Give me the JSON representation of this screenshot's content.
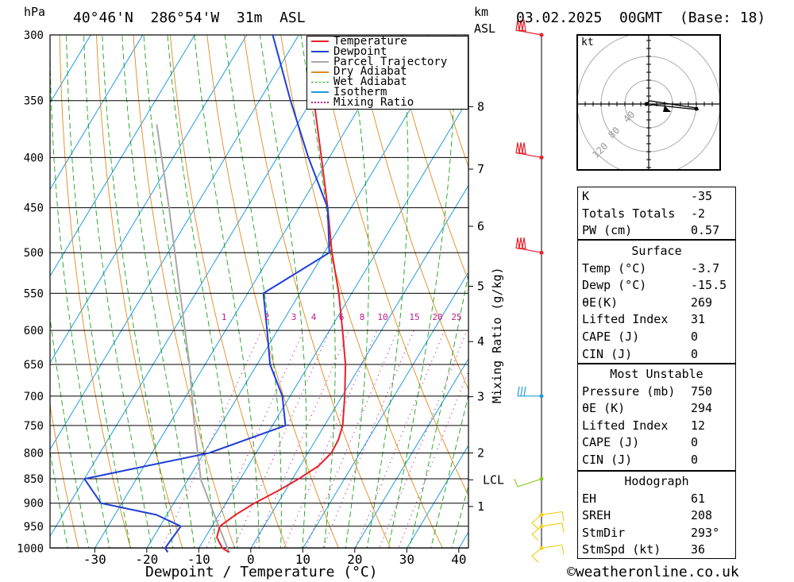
{
  "header": {
    "location": "40°46'N  286°54'W  31m  ASL",
    "datetime": "03.02.2025  00GMT  (Base: 18)",
    "pressure_unit": "hPa",
    "height_unit": "km",
    "height_unit2": "ASL"
  },
  "colors": {
    "temperature": "#e8202a",
    "dewpoint": "#1f3fd6",
    "parcel": "#a8a8a8",
    "dry_adiabat": "#e08a1e",
    "wet_adiabat": "#1aa31a",
    "isotherm": "#1f9be0",
    "mixing_ratio": "#c0198a",
    "wind_red": "#e8202a",
    "wind_blue": "#1f9be0",
    "wind_green": "#8ac82a",
    "wind_yellow": "#f0d020"
  },
  "legend": [
    "Temperature",
    "Dewpoint",
    "Parcel Trajectory",
    "Dry Adiabat",
    "Wet Adiabat",
    "Isotherm",
    "Mixing Ratio"
  ],
  "mixing_ratio_label": "Mixing Ratio (g/kg)",
  "xlabel": "Dewpoint / Temperature (°C)",
  "watermark": "©weatheronline.co.uk",
  "chart_data": {
    "type": "skew-t",
    "pressure_levels": [
      300,
      350,
      400,
      450,
      500,
      550,
      600,
      650,
      700,
      750,
      800,
      850,
      900,
      950,
      1000
    ],
    "temperature_ticks": [
      -30,
      -20,
      -10,
      0,
      10,
      20,
      30,
      40
    ],
    "height_ticks_km": [
      {
        "label": "8",
        "p": 355
      },
      {
        "label": "7",
        "p": 411
      },
      {
        "label": "6",
        "p": 470
      },
      {
        "label": "5",
        "p": 541
      },
      {
        "label": "4",
        "p": 616
      },
      {
        "label": "3",
        "p": 701
      },
      {
        "label": "2",
        "p": 800
      },
      {
        "label": "LCL",
        "p": 852
      },
      {
        "label": "1",
        "p": 907
      }
    ],
    "mixing_ratio_values": [
      "1",
      "2",
      "3",
      "4",
      "6",
      "8",
      "10",
      "15",
      "20",
      "25"
    ],
    "temperature_profile": [
      {
        "p": 1010,
        "t": -3.7
      },
      {
        "p": 1000,
        "t": -5.5
      },
      {
        "p": 975,
        "t": -7.8
      },
      {
        "p": 950,
        "t": -8.5
      },
      {
        "p": 925,
        "t": -6.8
      },
      {
        "p": 900,
        "t": -4.5
      },
      {
        "p": 875,
        "t": -1.5
      },
      {
        "p": 850,
        "t": 1.2
      },
      {
        "p": 825,
        "t": 3.5
      },
      {
        "p": 800,
        "t": 4.5
      },
      {
        "p": 775,
        "t": 4.3
      },
      {
        "p": 750,
        "t": 3.5
      },
      {
        "p": 700,
        "t": 0.5
      },
      {
        "p": 650,
        "t": -3.0
      },
      {
        "p": 600,
        "t": -7.5
      },
      {
        "p": 550,
        "t": -12.5
      },
      {
        "p": 500,
        "t": -18.5
      },
      {
        "p": 450,
        "t": -24.5
      },
      {
        "p": 400,
        "t": -31.5
      },
      {
        "p": 350,
        "t": -39.5
      },
      {
        "p": 300,
        "t": -48
      }
    ],
    "dewpoint_profile": [
      {
        "p": 1010,
        "t": -15.5
      },
      {
        "p": 1000,
        "t": -16.5
      },
      {
        "p": 950,
        "t": -16
      },
      {
        "p": 925,
        "t": -22
      },
      {
        "p": 900,
        "t": -34
      },
      {
        "p": 850,
        "t": -40
      },
      {
        "p": 800,
        "t": -19
      },
      {
        "p": 750,
        "t": -7.5
      },
      {
        "p": 700,
        "t": -11.5
      },
      {
        "p": 650,
        "t": -17.5
      },
      {
        "p": 600,
        "t": -22
      },
      {
        "p": 550,
        "t": -27
      },
      {
        "p": 500,
        "t": -19
      },
      {
        "p": 450,
        "t": -24.5
      },
      {
        "p": 400,
        "t": -34
      },
      {
        "p": 350,
        "t": -44
      },
      {
        "p": 300,
        "t": -55
      }
    ],
    "parcel_profile": [
      {
        "p": 1010,
        "t": -3.7
      },
      {
        "p": 950,
        "t": -8.7
      },
      {
        "p": 852,
        "t": -17.5
      },
      {
        "p": 750,
        "t": -25
      },
      {
        "p": 650,
        "t": -33
      },
      {
        "p": 550,
        "t": -43
      },
      {
        "p": 450,
        "t": -55
      },
      {
        "p": 370,
        "t": -67
      }
    ],
    "wind_barbs": [
      {
        "p": 300,
        "color": "wind_red",
        "style": "pennant"
      },
      {
        "p": 400,
        "color": "wind_red",
        "style": "pennant"
      },
      {
        "p": 500,
        "color": "wind_red",
        "style": "pennant"
      },
      {
        "p": 700,
        "color": "wind_blue",
        "style": "barb"
      },
      {
        "p": 850,
        "color": "wind_green",
        "style": "barb"
      },
      {
        "p": 925,
        "color": "wind_yellow",
        "style": "barb"
      },
      {
        "p": 950,
        "color": "wind_yellow",
        "style": "barb"
      },
      {
        "p": 1000,
        "color": "wind_yellow",
        "style": "barb"
      }
    ]
  },
  "hodograph": {
    "unit": "kt",
    "ring_labels": [
      "40",
      "80",
      "120"
    ]
  },
  "indices": {
    "top": [
      {
        "label": "K",
        "value": "-35"
      },
      {
        "label": "Totals Totals",
        "value": "-2"
      },
      {
        "label": "PW (cm)",
        "value": "0.57"
      }
    ],
    "surface": {
      "title": "Surface",
      "rows": [
        {
          "label": "Temp (°C)",
          "value": "-3.7"
        },
        {
          "label": "Dewp (°C)",
          "value": "-15.5"
        },
        {
          "label": "θE(K)",
          "value": "269"
        },
        {
          "label": "Lifted Index",
          "value": "31"
        },
        {
          "label": "CAPE (J)",
          "value": "0"
        },
        {
          "label": "CIN (J)",
          "value": "0"
        }
      ]
    },
    "most_unstable": {
      "title": "Most Unstable",
      "rows": [
        {
          "label": "Pressure (mb)",
          "value": "750"
        },
        {
          "label": "θE (K)",
          "value": "294"
        },
        {
          "label": "Lifted Index",
          "value": "12"
        },
        {
          "label": "CAPE (J)",
          "value": "0"
        },
        {
          "label": "CIN (J)",
          "value": "0"
        }
      ]
    },
    "hodograph": {
      "title": "Hodograph",
      "rows": [
        {
          "label": "EH",
          "value": "61"
        },
        {
          "label": "SREH",
          "value": "208"
        },
        {
          "label": "StmDir",
          "value": "293°"
        },
        {
          "label": "StmSpd (kt)",
          "value": "36"
        }
      ]
    }
  }
}
